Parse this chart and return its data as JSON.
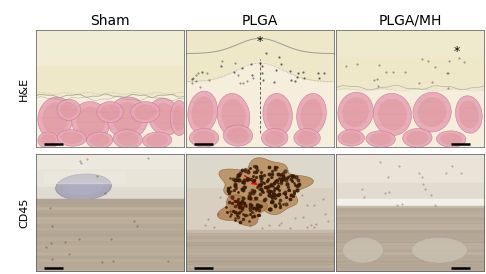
{
  "title_cols": [
    "Sham",
    "PLGA",
    "PLGA/MH"
  ],
  "title_rows": [
    "H&E",
    "CD45"
  ],
  "title_fontsize": 10,
  "row_label_fontsize": 8,
  "muscle_pink": "#e8a8b8",
  "muscle_dark_pink": "#c87890",
  "muscle_mid_pink": "#d99090",
  "tissue_cream": "#f5eedc",
  "tissue_yellow": "#eee8c8",
  "tissue_pale": "#f8f4e8",
  "fascia_white": "#f0ece0",
  "cd45_bg_light": "#e8e0d0",
  "cd45_bg_mid": "#d8cfc0",
  "cd45_muscle_tan": "#c8baa8",
  "cd45_muscle_stripe": "#b8aa98",
  "cd45_cluster_tan": "#c09060",
  "cd45_brown_cell": "#5a2e08",
  "cd45_sham_oval": "#9090a8",
  "scale_bar_color": "#000000",
  "fig_bg": "#ffffff"
}
